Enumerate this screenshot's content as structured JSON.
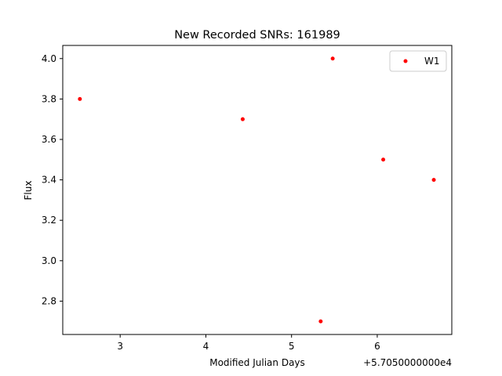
{
  "chart_data": {
    "type": "scatter",
    "title": "New Recorded SNRs: 161989",
    "xlabel": "Modified Julian Days",
    "ylabel": "Flux",
    "x_offset_label": "+5.7050000000e4",
    "xlim": [
      2.33,
      6.87
    ],
    "ylim": [
      2.635,
      4.065
    ],
    "x_ticks": [
      3,
      4,
      5,
      6
    ],
    "x_tick_labels": [
      "3",
      "4",
      "5",
      "6"
    ],
    "y_ticks": [
      2.8,
      3.0,
      3.2,
      3.4,
      3.6,
      3.8,
      4.0
    ],
    "y_tick_labels": [
      "2.8",
      "3.0",
      "3.2",
      "3.4",
      "3.6",
      "3.8",
      "4.0"
    ],
    "grid": false,
    "legend_position": "top-right",
    "series": [
      {
        "name": "W1",
        "color": "#ff0000",
        "points": [
          {
            "x": 2.53,
            "y": 3.8
          },
          {
            "x": 4.43,
            "y": 3.7
          },
          {
            "x": 5.34,
            "y": 2.7
          },
          {
            "x": 5.48,
            "y": 4.0
          },
          {
            "x": 6.07,
            "y": 3.5
          },
          {
            "x": 6.66,
            "y": 3.4
          }
        ]
      }
    ]
  }
}
